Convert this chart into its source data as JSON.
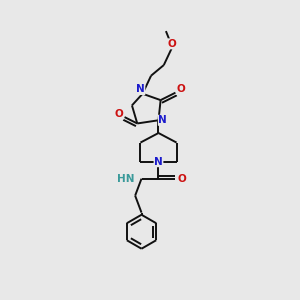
{
  "bg_color": "#e8e8e8",
  "bond_color": "#111111",
  "N_color": "#1a1acc",
  "O_color": "#cc1111",
  "H_color": "#3a9a9a",
  "bond_width": 1.4,
  "font_size_atom": 7.5,
  "fig_w": 3.0,
  "fig_h": 3.0,
  "dpi": 100,
  "xlim": [
    80,
    220
  ],
  "ylim": [
    20,
    300
  ]
}
